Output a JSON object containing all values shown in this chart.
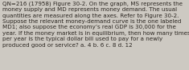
{
  "text": "QN=216 (17958) Figure 30-2. On the graph, MS represents the\nmoney supply and MD represents money demand. The usual\nquantities are measured along the axes. Refer to Figure 30-2.\nSuppose the relevant money-demand curve is the one labeled\nMD1; also suppose the economy’s real GDP is 30,000 for the\nyear. If the money market is in equilibrium, then how many times\nper year is the typical dollar bill used to pay for a newly\nproduced good or service? a. 4 b. 6 c. 8 d. 12",
  "background_color": "#cdc9c2",
  "text_color": "#2a2520",
  "font_size": 5.15,
  "fig_width": 2.35,
  "fig_height": 0.88,
  "linespacing": 1.28
}
